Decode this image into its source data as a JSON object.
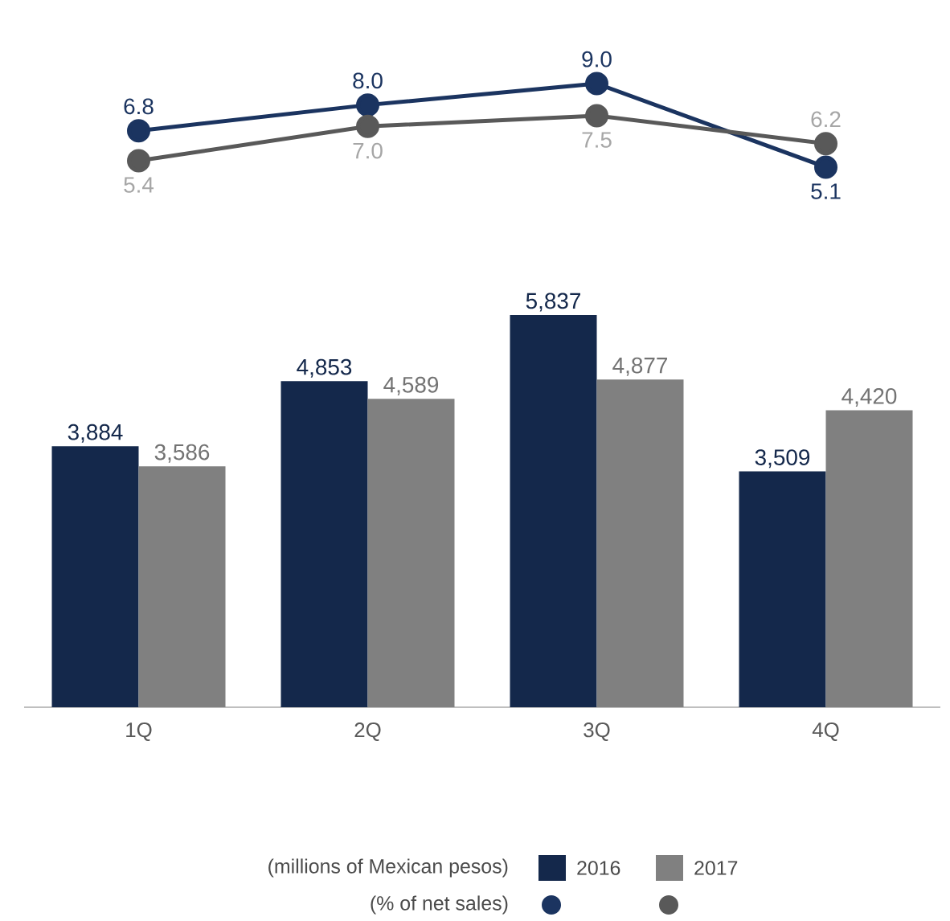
{
  "chart_data": [
    {
      "type": "line",
      "categories": [
        null,
        null,
        null,
        null
      ],
      "annotations": [
        "(% of net sales)"
      ],
      "tick_labels": false,
      "series": [
        {
          "color": "#1b3460",
          "marker": "circle",
          "values": [
            6.8,
            8.0,
            9.0,
            5.1
          ],
          "value_labels": [
            "6.8",
            "8.0",
            "9.0",
            "5.1"
          ]
        },
        {
          "color": "#595959",
          "marker": "circle",
          "values": [
            5.4,
            7.0,
            7.5,
            6.2
          ],
          "value_labels": [
            "5.4",
            "7.0",
            "7.5",
            "6.2"
          ]
        }
      ]
    },
    {
      "type": "bar",
      "categories": [
        "1Q",
        "2Q",
        "3Q",
        "4Q"
      ],
      "annotations": [
        "(millions of Mexican pesos)"
      ],
      "tick_labels": "x",
      "legend": "bottom",
      "series": [
        {
          "name": "2016",
          "color": "#14284b",
          "values": [
            3884,
            4853,
            5837,
            3509
          ],
          "value_labels": [
            "3,884",
            "4,853",
            "5,837",
            "3,509"
          ]
        },
        {
          "name": "2017",
          "color": "#808080",
          "values": [
            3586,
            4589,
            4877,
            4420
          ],
          "value_labels": [
            "3,586",
            "4,589",
            "4,877",
            "4,420"
          ]
        }
      ]
    }
  ]
}
